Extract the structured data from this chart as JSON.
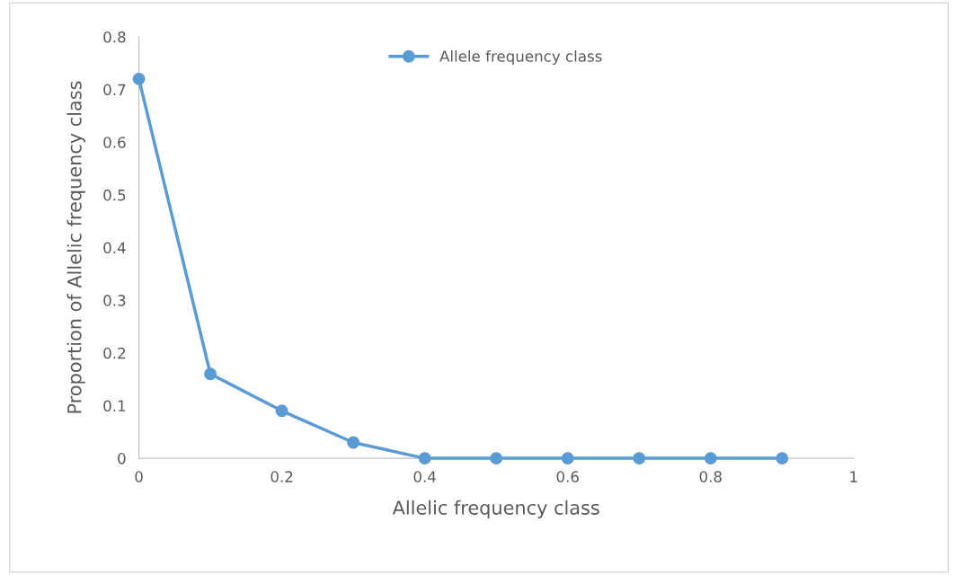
{
  "chart_data": {
    "type": "line",
    "xlabel": "Allelic frequency class",
    "ylabel": "Proportion of Allelic frequency class",
    "x": [
      0,
      0.1,
      0.2,
      0.3,
      0.4,
      0.5,
      0.6,
      0.7,
      0.8,
      0.9
    ],
    "series": [
      {
        "name": "Allele frequency class",
        "color": "#5b9bd5",
        "values": [
          0.72,
          0.16,
          0.09,
          0.03,
          0,
          0,
          0,
          0,
          0,
          0
        ]
      }
    ],
    "xlim": [
      0,
      1
    ],
    "xticks": [
      0,
      0.2,
      0.4,
      0.6,
      0.8,
      1
    ],
    "ylim": [
      0,
      0.8
    ],
    "yticks": [
      0,
      0.1,
      0.2,
      0.3,
      0.4,
      0.5,
      0.6,
      0.7,
      0.8
    ],
    "grid": false,
    "legend": "top",
    "marker": "circle",
    "line_style": "solid"
  }
}
